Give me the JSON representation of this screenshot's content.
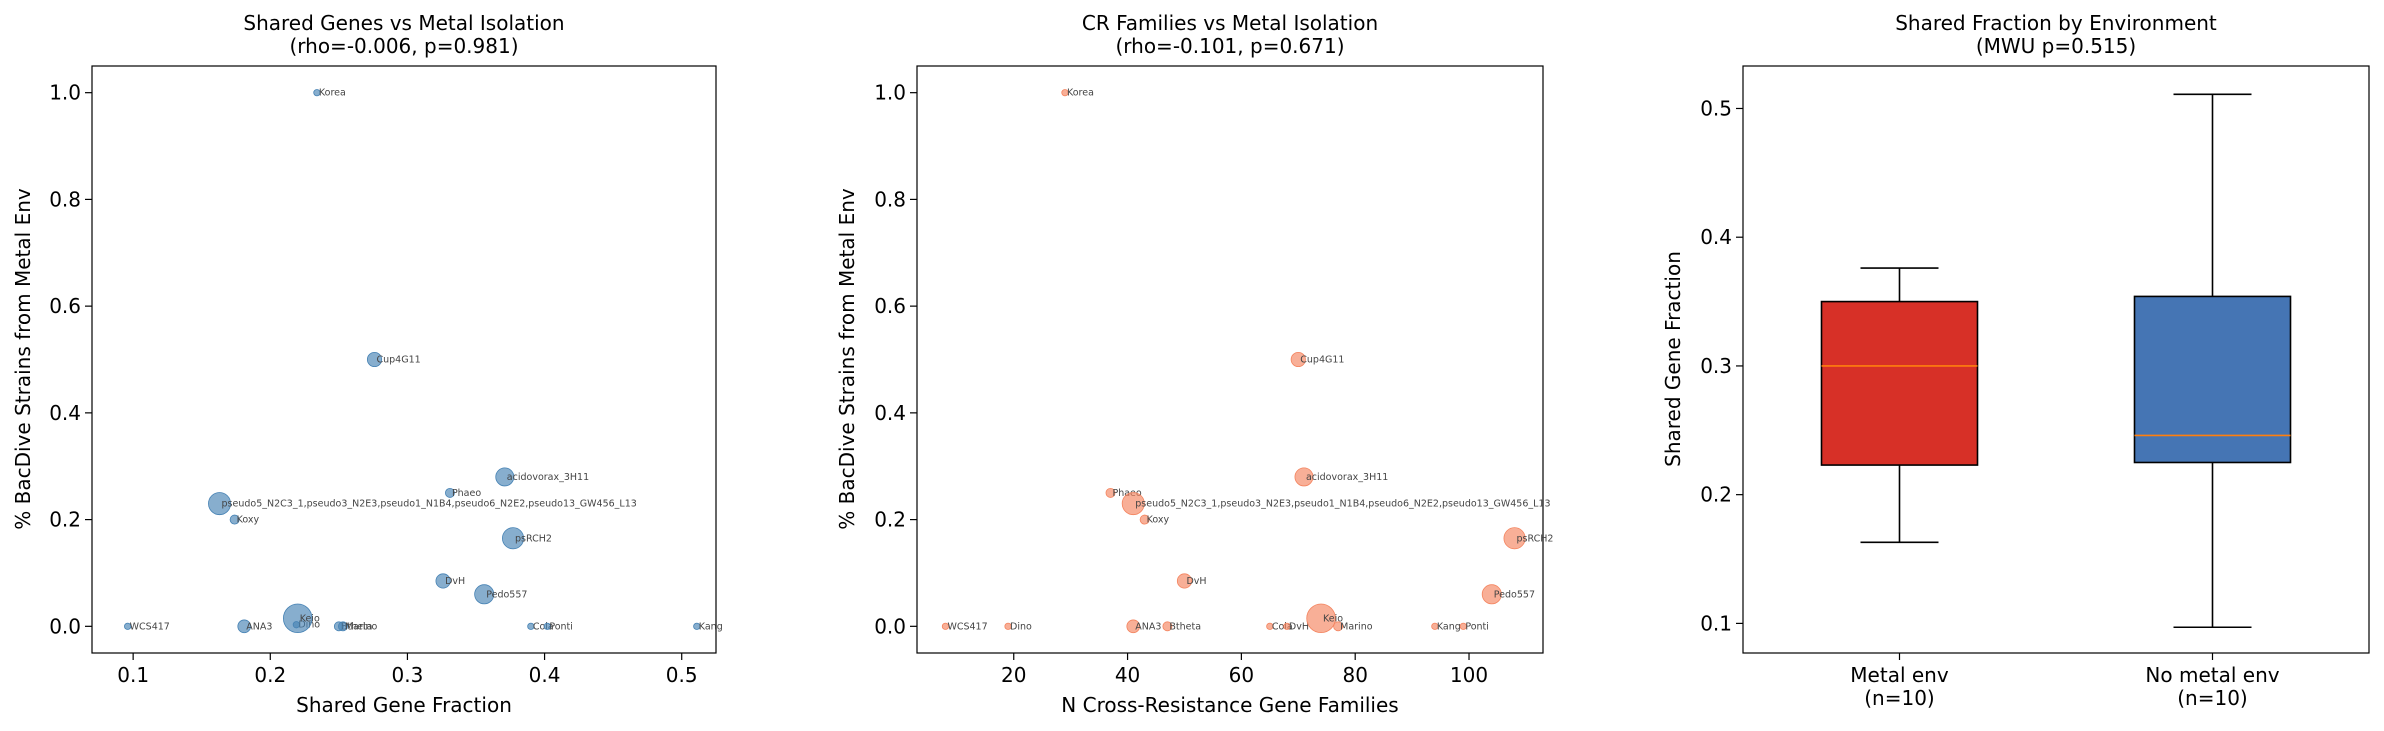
{
  "colors": {
    "blue_point": "#4682b4",
    "orange_point": "#f4845f",
    "box_red": "#d73027",
    "box_blue": "#4575b4",
    "median_line": "#ff7f0e",
    "label_text": "#444444"
  },
  "chart_data": [
    {
      "type": "scatter",
      "title": "Shared Genes vs Metal Isolation",
      "subtitle": "(rho=-0.006, p=0.981)",
      "xlabel": "Shared Gene Fraction",
      "ylabel": "% BacDive Strains from Metal Env",
      "xlim": [
        0.07,
        0.525
      ],
      "ylim": [
        -0.05,
        1.05
      ],
      "xticks": [
        0.1,
        0.2,
        0.3,
        0.4,
        0.5
      ],
      "xtick_labels": [
        "0.1",
        "0.2",
        "0.3",
        "0.4",
        "0.5"
      ],
      "yticks": [
        0.0,
        0.2,
        0.4,
        0.6,
        0.8,
        1.0
      ],
      "ytick_labels": [
        "0.0",
        "0.2",
        "0.4",
        "0.6",
        "0.8",
        "1.0"
      ],
      "grid": false,
      "color": "#4682b4",
      "points": [
        {
          "label": "Korea",
          "x": 0.234,
          "y": 1.0,
          "size": 1
        },
        {
          "label": "Cup4G11",
          "x": 0.276,
          "y": 0.5,
          "size": 5
        },
        {
          "label": "acidovorax_3H11",
          "x": 0.371,
          "y": 0.28,
          "size": 8
        },
        {
          "label": "Phaeo",
          "x": 0.331,
          "y": 0.25,
          "size": 2
        },
        {
          "label": "pseudo5_N2C3_1,pseudo3_N2E3,pseudo1_N1B4,pseudo6_N2E2,pseudo13_GW456_L13",
          "x": 0.163,
          "y": 0.23,
          "size": 12
        },
        {
          "label": "Koxy",
          "x": 0.174,
          "y": 0.2,
          "size": 2
        },
        {
          "label": "psRCH2",
          "x": 0.377,
          "y": 0.165,
          "size": 11
        },
        {
          "label": "DvH",
          "x": 0.326,
          "y": 0.085,
          "size": 5
        },
        {
          "label": "Pedo557",
          "x": 0.356,
          "y": 0.06,
          "size": 9
        },
        {
          "label": "WCS417",
          "x": 0.096,
          "y": 0.0,
          "size": 1
        },
        {
          "label": "ANA3",
          "x": 0.181,
          "y": 0.0,
          "size": 4
        },
        {
          "label": "Dino",
          "x": 0.219,
          "y": 0.003,
          "size": 1
        },
        {
          "label": "Keio",
          "x": 0.22,
          "y": 0.015,
          "size": 20
        },
        {
          "label": "Btheta",
          "x": 0.25,
          "y": 0.0,
          "size": 2
        },
        {
          "label": "Marino",
          "x": 0.253,
          "y": 0.0,
          "size": 2
        },
        {
          "label": "Cola",
          "x": 0.39,
          "y": 0.0,
          "size": 1
        },
        {
          "label": "Ponti",
          "x": 0.402,
          "y": 0.0,
          "size": 1
        },
        {
          "label": "Kang",
          "x": 0.511,
          "y": 0.0,
          "size": 1
        }
      ]
    },
    {
      "type": "scatter",
      "title": "CR Families vs Metal Isolation",
      "subtitle": "(rho=-0.101, p=0.671)",
      "xlabel": "N Cross-Resistance Gene Families",
      "ylabel": "% BacDive Strains from Metal Env",
      "xlim": [
        3,
        113
      ],
      "ylim": [
        -0.05,
        1.05
      ],
      "xticks": [
        20,
        40,
        60,
        80,
        100
      ],
      "xtick_labels": [
        "20",
        "40",
        "60",
        "80",
        "100"
      ],
      "yticks": [
        0.0,
        0.2,
        0.4,
        0.6,
        0.8,
        1.0
      ],
      "ytick_labels": [
        "0.0",
        "0.2",
        "0.4",
        "0.6",
        "0.8",
        "1.0"
      ],
      "grid": false,
      "color": "#f4845f",
      "points": [
        {
          "label": "Korea",
          "x": 29,
          "y": 1.0,
          "size": 1
        },
        {
          "label": "Cup4G11",
          "x": 70,
          "y": 0.5,
          "size": 5
        },
        {
          "label": "acidovorax_3H11",
          "x": 71,
          "y": 0.28,
          "size": 8
        },
        {
          "label": "Phaeo",
          "x": 37,
          "y": 0.25,
          "size": 2
        },
        {
          "label": "pseudo5_N2C3_1,pseudo3_N2E3,pseudo1_N1B4,pseudo6_N2E2,pseudo13_GW456_L13",
          "x": 41,
          "y": 0.23,
          "size": 12
        },
        {
          "label": "Koxy",
          "x": 43,
          "y": 0.2,
          "size": 2
        },
        {
          "label": "psRCH2",
          "x": 108,
          "y": 0.165,
          "size": 11
        },
        {
          "label": "DvH",
          "x": 50,
          "y": 0.085,
          "size": 5
        },
        {
          "label": "Pedo557",
          "x": 104,
          "y": 0.06,
          "size": 9
        },
        {
          "label": "WCS417",
          "x": 8,
          "y": 0.0,
          "size": 1
        },
        {
          "label": "Dino",
          "x": 19,
          "y": 0.0,
          "size": 1
        },
        {
          "label": "ANA3",
          "x": 41,
          "y": 0.0,
          "size": 4
        },
        {
          "label": "Btheta",
          "x": 47,
          "y": 0.0,
          "size": 2
        },
        {
          "label": "Cola",
          "x": 65,
          "y": 0.0,
          "size": 1
        },
        {
          "label": "DvH",
          "x": 68,
          "y": 0.0,
          "size": 1
        },
        {
          "label": "Keio",
          "x": 74,
          "y": 0.015,
          "size": 20
        },
        {
          "label": "Marino",
          "x": 77,
          "y": 0.0,
          "size": 2
        },
        {
          "label": "Kang",
          "x": 94,
          "y": 0.0,
          "size": 1
        },
        {
          "label": "Ponti",
          "x": 99,
          "y": 0.0,
          "size": 1
        }
      ]
    },
    {
      "type": "box",
      "title": "Shared Fraction by Environment",
      "subtitle": "(MWU p=0.515)",
      "xlabel": "",
      "ylabel": "Shared Gene Fraction",
      "ylim": [
        0.077,
        0.533
      ],
      "yticks": [
        0.1,
        0.2,
        0.3,
        0.4,
        0.5
      ],
      "ytick_labels": [
        "0.1",
        "0.2",
        "0.3",
        "0.4",
        "0.5"
      ],
      "grid": false,
      "groups": [
        {
          "label": "Metal env",
          "n_label": "(n=10)",
          "color": "#d73027",
          "whisker_low": 0.163,
          "q1": 0.223,
          "median": 0.3,
          "q3": 0.35,
          "whisker_high": 0.376
        },
        {
          "label": "No metal env",
          "n_label": "(n=10)",
          "color": "#4575b4",
          "whisker_low": 0.097,
          "q1": 0.225,
          "median": 0.246,
          "q3": 0.354,
          "whisker_high": 0.511
        }
      ]
    }
  ]
}
